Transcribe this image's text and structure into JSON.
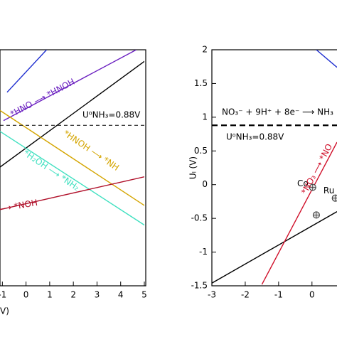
{
  "chart_data": [
    {
      "type": "line",
      "x_label": "V)",
      "xlim": [
        -1.1,
        5
      ],
      "ylim": [
        -1.5,
        2
      ],
      "xticks": [
        -1,
        0,
        1,
        2,
        3,
        4,
        5
      ],
      "hline": 0.88,
      "series": [
        {
          "color": "#1f2fd0",
          "x": [
            -0.8,
            0.87
          ],
          "values": [
            1.37,
            2
          ]
        },
        {
          "color": "#6a1fc0",
          "x": [
            -0.95,
            4.66
          ],
          "values": [
            0.95,
            2
          ]
        },
        {
          "color": "#000000",
          "x": [
            -1.1,
            5.05
          ],
          "values": [
            0.26,
            1.84
          ]
        },
        {
          "color": "#d4a500",
          "x": [
            -1.1,
            5.05
          ],
          "values": [
            1.1,
            -0.32
          ]
        },
        {
          "color": "#3fe0c0",
          "x": [
            -1.1,
            5.05
          ],
          "values": [
            0.79,
            -0.61
          ]
        },
        {
          "color": "#b0102a",
          "x": [
            -1.1,
            5.05
          ],
          "values": [
            -0.37,
            0.12
          ]
        }
      ],
      "annotations": [
        "*HNO ⟶ *HNOH",
        "U⁰NH₃=0.88V",
        "*HNOH ⟶ *NH",
        "*H₂OH ⟶ *NH₂",
        "⟶ *NOH"
      ]
    },
    {
      "type": "line",
      "y_label": "Uₗ (V)",
      "xlim": [
        -3,
        0.75
      ],
      "ylim": [
        -1.5,
        2
      ],
      "xticks": [
        -3,
        -2,
        -1,
        0
      ],
      "yticks": [
        2,
        1.5,
        1,
        0.5,
        0,
        -0.5,
        -1,
        -1.5
      ],
      "hline": 0.88,
      "series": [
        {
          "color": "#1f2fd0",
          "x": [
            0.13,
            0.75
          ],
          "values": [
            2,
            1.74
          ]
        },
        {
          "color": "#000000",
          "x": [
            -3,
            0.75
          ],
          "values": [
            -1.46,
            -0.4
          ]
        },
        {
          "color": "#d0102a",
          "x": [
            -1.5,
            0.75
          ],
          "values": [
            -1.48,
            0.63
          ]
        }
      ],
      "points": {
        "x": [
          0.02,
          0.13,
          0.7
        ],
        "values": [
          -0.04,
          -0.45,
          -0.2
        ],
        "labels": [
          "Co",
          "Ru",
          null
        ]
      },
      "annotations": [
        "NO₃⁻ + 9H⁺ + 8e⁻ ⟶ NH₃",
        "U⁰NH₃=0.88V",
        "*NO₃ ⟶ *NO"
      ]
    }
  ]
}
